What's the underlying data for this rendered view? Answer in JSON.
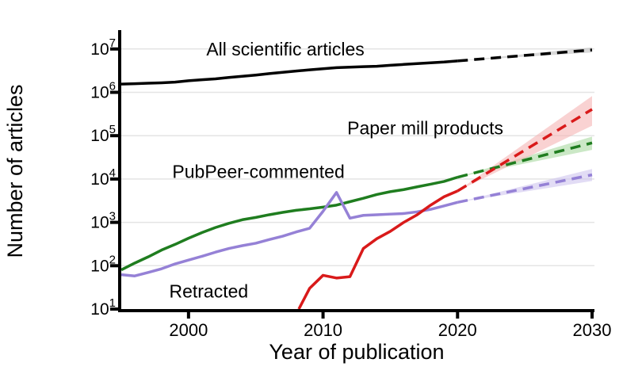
{
  "chart_data": {
    "type": "line",
    "title": "",
    "xlabel": "Year of publication",
    "ylabel": "Number of articles",
    "y_scale": "log10",
    "grid": "horizontal-major",
    "legend_position": "inline-labels",
    "x_axis": {
      "range": [
        1995,
        2030
      ],
      "ticks": [
        2000,
        2010,
        2020,
        2030
      ]
    },
    "y_axis": {
      "range_exponents": [
        1,
        7.4
      ],
      "tick_exponents": [
        1,
        2,
        3,
        4,
        5,
        6,
        7
      ],
      "tick_base": "10"
    },
    "style": {
      "grid_color": "#e4e4e4",
      "axis_color": "#000000",
      "background": "#ffffff",
      "solid_segment": "observed 1995-2020",
      "dashed_segment": "projection 2020-2030"
    },
    "series": [
      {
        "id": "pubpeer",
        "name": "PubPeer-commented",
        "color": "#1f7d1f",
        "band_color": "#a8d8a0",
        "observed": [
          [
            1995,
            80
          ],
          [
            1996,
            115
          ],
          [
            1997,
            160
          ],
          [
            1998,
            230
          ],
          [
            1999,
            310
          ],
          [
            2000,
            430
          ],
          [
            2001,
            580
          ],
          [
            2002,
            760
          ],
          [
            2003,
            950
          ],
          [
            2004,
            1150
          ],
          [
            2005,
            1300
          ],
          [
            2006,
            1500
          ],
          [
            2007,
            1700
          ],
          [
            2008,
            1900
          ],
          [
            2009,
            2050
          ],
          [
            2010,
            2250
          ],
          [
            2011,
            2500
          ],
          [
            2012,
            3000
          ],
          [
            2013,
            3600
          ],
          [
            2014,
            4400
          ],
          [
            2015,
            5100
          ],
          [
            2016,
            5700
          ],
          [
            2017,
            6600
          ],
          [
            2018,
            7600
          ],
          [
            2019,
            8800
          ],
          [
            2020,
            11000
          ]
        ],
        "projected": [
          [
            2020,
            11000
          ],
          [
            2030,
            68000
          ]
        ],
        "band": [
          [
            2020,
            11000,
            11000
          ],
          [
            2030,
            47000,
            95000
          ]
        ],
        "label": {
          "text": "PubPeer-commented",
          "x_year": 2005.2,
          "y_value": 15000
        }
      },
      {
        "id": "retracted",
        "name": "Retracted",
        "color": "#9581d6",
        "band_color": "#cfc5ef",
        "observed": [
          [
            1995,
            62
          ],
          [
            1996,
            58
          ],
          [
            1997,
            70
          ],
          [
            1998,
            85
          ],
          [
            1999,
            110
          ],
          [
            2000,
            135
          ],
          [
            2001,
            165
          ],
          [
            2002,
            205
          ],
          [
            2003,
            250
          ],
          [
            2004,
            290
          ],
          [
            2005,
            330
          ],
          [
            2006,
            400
          ],
          [
            2007,
            480
          ],
          [
            2008,
            600
          ],
          [
            2009,
            730
          ],
          [
            2010,
            1800
          ],
          [
            2011,
            4900
          ],
          [
            2012,
            1250
          ],
          [
            2013,
            1450
          ],
          [
            2014,
            1500
          ],
          [
            2015,
            1550
          ],
          [
            2016,
            1600
          ],
          [
            2017,
            1750
          ],
          [
            2018,
            2000
          ],
          [
            2019,
            2400
          ],
          [
            2020,
            2900
          ]
        ],
        "projected": [
          [
            2020,
            2900
          ],
          [
            2030,
            12500
          ]
        ],
        "band": [
          [
            2020,
            2900,
            2900
          ],
          [
            2030,
            9000,
            17000
          ]
        ],
        "label": {
          "text": "Retracted",
          "x_year": 2001.5,
          "y_value": 26
        }
      },
      {
        "id": "paper-mill",
        "name": "Paper mill products",
        "color": "#d91a1a",
        "band_color": "#f5b4b4",
        "observed": [
          [
            2008.2,
            10
          ],
          [
            2009,
            30
          ],
          [
            2010,
            60
          ],
          [
            2011,
            52
          ],
          [
            2012,
            56
          ],
          [
            2013,
            250
          ],
          [
            2014,
            420
          ],
          [
            2015,
            620
          ],
          [
            2016,
            1000
          ],
          [
            2017,
            1500
          ],
          [
            2018,
            2500
          ],
          [
            2019,
            3900
          ],
          [
            2020,
            5300
          ]
        ],
        "projected": [
          [
            2020,
            5300
          ],
          [
            2030,
            405000
          ]
        ],
        "band": [
          [
            2020,
            5300,
            5300
          ],
          [
            2030,
            170000,
            820000
          ]
        ],
        "label": {
          "text": "Paper mill products",
          "x_year": 2017.6,
          "y_value": 150000
        }
      },
      {
        "id": "all-articles",
        "name": "All scientific articles",
        "color": "#000000",
        "band_color": "#bfbfbf",
        "observed": [
          [
            1995,
            1550000
          ],
          [
            1996,
            1580000
          ],
          [
            1997,
            1620000
          ],
          [
            1998,
            1660000
          ],
          [
            1999,
            1720000
          ],
          [
            2000,
            1850000
          ],
          [
            2001,
            1950000
          ],
          [
            2002,
            2050000
          ],
          [
            2003,
            2200000
          ],
          [
            2004,
            2350000
          ],
          [
            2005,
            2500000
          ],
          [
            2006,
            2700000
          ],
          [
            2007,
            2900000
          ],
          [
            2008,
            3100000
          ],
          [
            2009,
            3300000
          ],
          [
            2010,
            3500000
          ],
          [
            2011,
            3700000
          ],
          [
            2012,
            3800000
          ],
          [
            2013,
            3900000
          ],
          [
            2014,
            4000000
          ],
          [
            2015,
            4200000
          ],
          [
            2016,
            4400000
          ],
          [
            2017,
            4600000
          ],
          [
            2018,
            4800000
          ],
          [
            2019,
            5000000
          ],
          [
            2020,
            5300000
          ]
        ],
        "projected": [
          [
            2020,
            5300000
          ],
          [
            2030,
            9500000
          ]
        ],
        "band": [
          [
            2020,
            5300000,
            5300000
          ],
          [
            2030,
            8300000,
            10900000
          ]
        ],
        "label": {
          "text": "All scientific articles",
          "x_year": 2007.2,
          "y_value": 10000000
        }
      }
    ]
  }
}
